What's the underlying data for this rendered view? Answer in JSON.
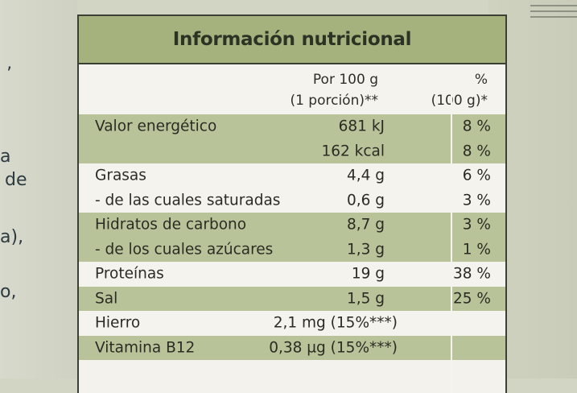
{
  "background_fragments": [
    "’",
    "a",
    "de",
    "a),",
    "o,"
  ],
  "panel": {
    "title": "Información nutricional",
    "header": {
      "per_line1": "Por 100 g",
      "per_line2": "(1 porción)**",
      "pct_line1": "%",
      "pct_line2": "(100 g)*"
    },
    "rows": [
      {
        "label": "Valor energético",
        "value": "681 kJ",
        "pct": "8 %",
        "shade": "g"
      },
      {
        "label": "",
        "value": "162 kcal",
        "pct": "8 %",
        "shade": "g"
      },
      {
        "label": "Grasas",
        "value": "4,4 g",
        "pct": "6 %",
        "shade": "w"
      },
      {
        "label": "- de las cuales saturadas",
        "value": "0,6 g",
        "pct": "3 %",
        "shade": "w"
      },
      {
        "label": "Hidratos de carbono",
        "value": "8,7 g",
        "pct": "3 %",
        "shade": "g"
      },
      {
        "label": "- de los cuales azúcares",
        "value": "1,3 g",
        "pct": "1 %",
        "shade": "g"
      },
      {
        "label": "Proteínas",
        "value": "19 g",
        "pct": "38 %",
        "shade": "w"
      },
      {
        "label": "Sal",
        "value": "1,5 g",
        "pct": "25 %",
        "shade": "g"
      },
      {
        "label": "Hierro",
        "value": "2,1 mg (15%***)",
        "pct": "",
        "shade": "w"
      },
      {
        "label": "Vitamina B12",
        "value": "0,38 µg (15%***)",
        "pct": "",
        "shade": "g"
      }
    ]
  },
  "colors": {
    "title_bg": "#a5b27d",
    "band_green": "#b9c399",
    "band_white": "#f4f3ee",
    "border": "#3b4034"
  }
}
